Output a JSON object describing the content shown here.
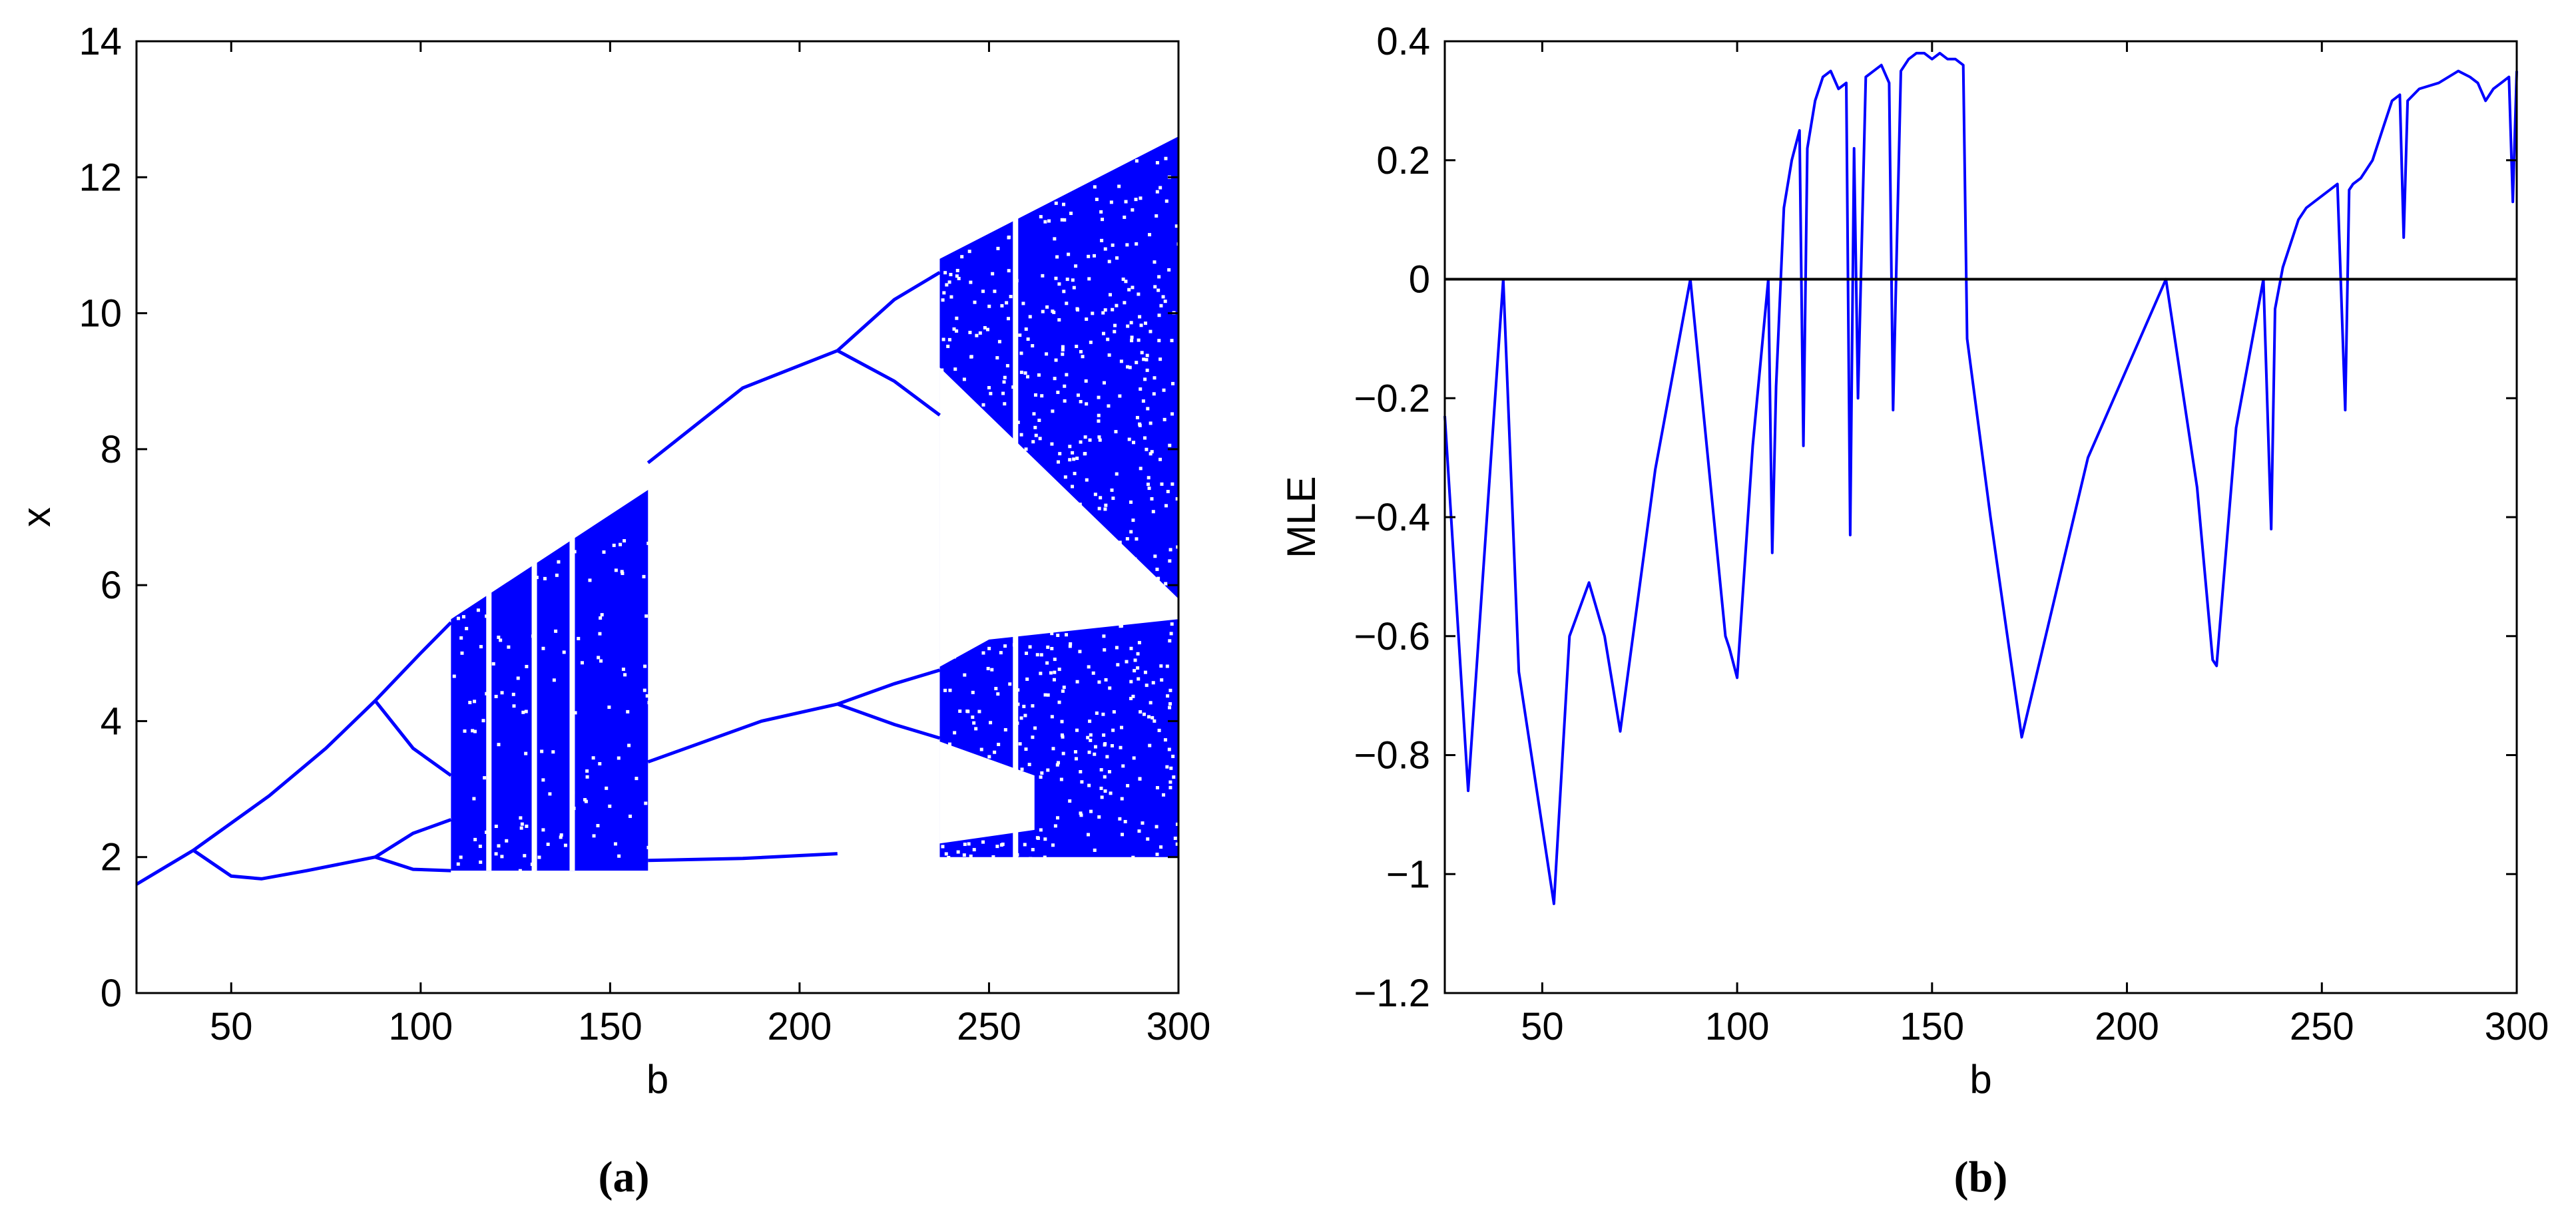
{
  "chart_data": [
    {
      "type": "scatter",
      "panel_label": "(a)",
      "xlabel": "b",
      "ylabel": "x",
      "xlim": [
        25,
        300
      ],
      "ylim": [
        0,
        14
      ],
      "xticks": [
        50,
        100,
        150,
        200,
        250,
        300
      ],
      "yticks": [
        0,
        2,
        4,
        6,
        8,
        10,
        12,
        14
      ],
      "grid": false,
      "color": "#0000ff",
      "branches": [
        {
          "x": [
            25,
            40,
            60,
            75,
            88
          ],
          "y": [
            1.6,
            2.1,
            2.9,
            3.6,
            4.3
          ]
        },
        {
          "x": [
            40,
            50,
            58,
            70,
            88
          ],
          "y": [
            2.1,
            1.72,
            1.68,
            1.8,
            2.0
          ]
        },
        {
          "x": [
            88,
            100,
            108
          ],
          "y": [
            4.3,
            5.0,
            5.45
          ]
        },
        {
          "x": [
            88,
            98,
            108
          ],
          "y": [
            4.3,
            3.6,
            3.2
          ]
        },
        {
          "x": [
            88,
            98,
            108
          ],
          "y": [
            2.0,
            2.35,
            2.55
          ]
        },
        {
          "x": [
            88,
            98,
            108
          ],
          "y": [
            2.0,
            1.82,
            1.8
          ]
        },
        {
          "x": [
            160,
            185,
            210
          ],
          "y": [
            7.8,
            8.9,
            9.45
          ]
        },
        {
          "x": [
            160,
            190,
            210
          ],
          "y": [
            3.4,
            4.0,
            4.25
          ]
        },
        {
          "x": [
            160,
            185,
            210
          ],
          "y": [
            1.95,
            1.98,
            2.05
          ]
        },
        {
          "x": [
            210,
            225,
            237
          ],
          "y": [
            9.45,
            10.2,
            10.6
          ]
        },
        {
          "x": [
            210,
            225,
            237
          ],
          "y": [
            9.45,
            9.0,
            8.5
          ]
        },
        {
          "x": [
            210,
            225,
            237
          ],
          "y": [
            4.25,
            4.55,
            4.75
          ]
        },
        {
          "x": [
            210,
            225,
            237
          ],
          "y": [
            4.25,
            3.95,
            3.75
          ]
        }
      ],
      "chaotic_regions": [
        {
          "x_start": 108,
          "x_end": 160,
          "y_low": 1.8,
          "y_high_start": 5.5,
          "y_high_end": 7.4
        },
        {
          "x_start": 237,
          "x_end": 300,
          "y_low": 2.0,
          "y_high_start": 10.8,
          "y_high_end": 12.6
        }
      ],
      "periodic_windows": [
        118,
        130,
        140,
        257
      ]
    },
    {
      "type": "line",
      "panel_label": "(b)",
      "xlabel": "b",
      "ylabel": "MLE",
      "xlim": [
        25,
        300
      ],
      "ylim": [
        -1.2,
        0.4
      ],
      "xticks": [
        50,
        100,
        150,
        200,
        250,
        300
      ],
      "yticks": [
        -1.2,
        -1,
        -0.8,
        -0.6,
        -0.4,
        -0.2,
        0,
        0.2,
        0.4
      ],
      "ytick_labels": [
        "−1.2",
        "−1",
        "−0.8",
        "−0.6",
        "−0.4",
        "−0.2",
        "0",
        "0.2",
        "0.4"
      ],
      "grid": false,
      "color": "#0000ff",
      "reference_line": {
        "y": 0,
        "color": "#000000"
      },
      "x": [
        25,
        31,
        40,
        44,
        53,
        57,
        62,
        66,
        70,
        79,
        88,
        97,
        98,
        100,
        104,
        108,
        109,
        110,
        112,
        114,
        116,
        117,
        118,
        120,
        122,
        124,
        126,
        128,
        129,
        130,
        131,
        133,
        135,
        137,
        139,
        140,
        142,
        144,
        146,
        148,
        150,
        152,
        154,
        156,
        158,
        159,
        165,
        173,
        190,
        210,
        218,
        222,
        223,
        228,
        235,
        237,
        238,
        240,
        242,
        244,
        246,
        248,
        250,
        252,
        254,
        256,
        257,
        258,
        260,
        263,
        266,
        268,
        270,
        271,
        272,
        275,
        280,
        285,
        288,
        290,
        292,
        294,
        296,
        298,
        299,
        300
      ],
      "y": [
        -0.23,
        -0.86,
        0.0,
        -0.66,
        -1.05,
        -0.6,
        -0.51,
        -0.6,
        -0.76,
        -0.32,
        0.0,
        -0.6,
        -0.62,
        -0.67,
        -0.28,
        0.0,
        -0.46,
        -0.18,
        0.12,
        0.2,
        0.25,
        -0.28,
        0.22,
        0.3,
        0.34,
        0.35,
        0.32,
        0.33,
        -0.43,
        0.22,
        -0.2,
        0.34,
        0.35,
        0.36,
        0.33,
        -0.22,
        0.35,
        0.37,
        0.38,
        0.38,
        0.37,
        0.38,
        0.37,
        0.37,
        0.36,
        -0.1,
        -0.4,
        -0.77,
        -0.3,
        0.0,
        -0.35,
        -0.64,
        -0.65,
        -0.25,
        0.0,
        -0.42,
        -0.05,
        0.02,
        0.06,
        0.1,
        0.12,
        0.13,
        0.14,
        0.15,
        0.16,
        -0.22,
        0.15,
        0.16,
        0.17,
        0.2,
        0.26,
        0.3,
        0.31,
        0.07,
        0.3,
        0.32,
        0.33,
        0.35,
        0.34,
        0.33,
        0.3,
        0.32,
        0.33,
        0.34,
        0.13,
        0.35
      ]
    }
  ]
}
